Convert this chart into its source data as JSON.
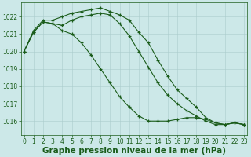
{
  "xlabel": "Graphe pression niveau de la mer (hPa)",
  "bg_color": "#cce8e8",
  "grid_color": "#aacccc",
  "line_color": "#1a5c1a",
  "marker": "+",
  "ylim": [
    1015.2,
    1022.8
  ],
  "xlim": [
    -0.3,
    23.3
  ],
  "yticks": [
    1016,
    1017,
    1018,
    1019,
    1020,
    1021,
    1022
  ],
  "xticks": [
    0,
    1,
    2,
    3,
    4,
    5,
    6,
    7,
    8,
    9,
    10,
    11,
    12,
    13,
    14,
    15,
    16,
    17,
    18,
    19,
    20,
    21,
    22,
    23
  ],
  "series": [
    {
      "x": [
        0,
        1,
        2,
        3,
        4,
        5,
        6,
        7,
        8,
        9,
        10,
        11,
        12,
        13,
        14,
        15,
        16,
        17,
        18,
        19,
        20,
        21,
        22,
        23
      ],
      "y": [
        1020.0,
        1021.2,
        1021.8,
        1021.8,
        1022.0,
        1022.2,
        1022.3,
        1022.4,
        1022.5,
        1022.3,
        1022.1,
        1021.8,
        1021.1,
        1020.5,
        1019.5,
        1018.6,
        1017.8,
        1017.3,
        1016.8,
        1016.2,
        1015.9,
        1015.8,
        1015.9,
        1015.8
      ]
    },
    {
      "x": [
        0,
        1,
        2,
        3,
        4,
        5,
        6,
        7,
        8,
        9,
        10,
        11,
        12,
        13,
        14,
        15,
        16,
        17,
        18,
        19,
        20,
        21,
        22,
        23
      ],
      "y": [
        1020.0,
        1021.1,
        1021.7,
        1021.6,
        1021.5,
        1021.8,
        1022.0,
        1022.1,
        1022.2,
        1022.1,
        1021.6,
        1020.9,
        1020.0,
        1019.1,
        1018.2,
        1017.5,
        1017.0,
        1016.6,
        1016.3,
        1016.0,
        1015.8,
        1015.8,
        1015.9,
        1015.8
      ]
    },
    {
      "x": [
        0,
        1,
        2,
        3,
        4,
        5,
        6,
        7,
        8,
        9,
        10,
        11,
        12,
        13,
        14,
        15,
        16,
        17,
        18,
        19,
        20,
        21,
        22,
        23
      ],
      "y": [
        1020.0,
        1021.1,
        1021.7,
        1021.6,
        1021.2,
        1021.0,
        1020.5,
        1019.8,
        1019.0,
        1018.2,
        1017.4,
        1016.8,
        1016.3,
        1016.0,
        1016.0,
        1016.0,
        1016.1,
        1016.2,
        1016.2,
        1016.1,
        1015.9,
        1015.8,
        1015.9,
        1015.8
      ]
    }
  ],
  "tick_fontsize": 5.5,
  "xlabel_fontsize": 7.5,
  "marker_size": 3,
  "linewidth": 0.8
}
